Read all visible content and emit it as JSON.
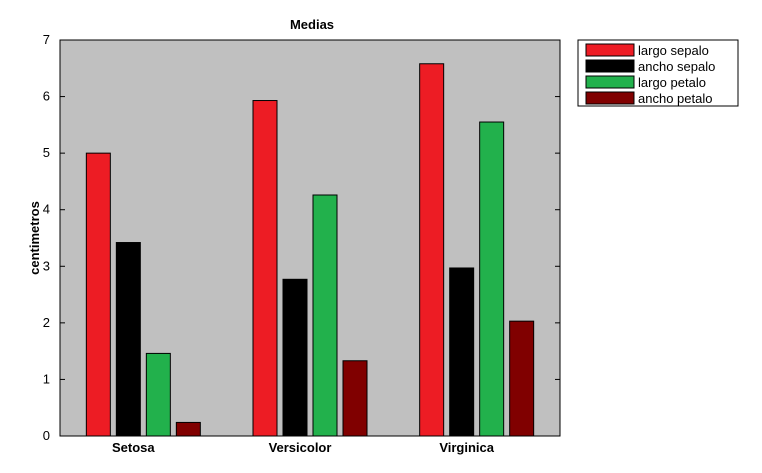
{
  "chart_data": {
    "type": "bar",
    "title": "Medias",
    "xlabel": "",
    "ylabel": "centimetros",
    "categories": [
      "Setosa",
      "Versicolor",
      "Virginica"
    ],
    "ylim": [
      0,
      7
    ],
    "yticks": [
      0,
      1,
      2,
      3,
      4,
      5,
      6,
      7
    ],
    "grid": false,
    "legend_position": "top-right-outside",
    "series": [
      {
        "name": "largo sepalo",
        "color": "#ed1c24",
        "values": [
          5.0,
          5.93,
          6.58
        ]
      },
      {
        "name": "ancho sepalo",
        "color": "#000000",
        "values": [
          3.42,
          2.77,
          2.97
        ]
      },
      {
        "name": "largo petalo",
        "color": "#22b14c",
        "values": [
          1.46,
          4.26,
          5.55
        ]
      },
      {
        "name": "ancho petalo",
        "color": "#800000",
        "values": [
          0.24,
          1.33,
          2.03
        ]
      }
    ],
    "plot_background": "#c0c0c0"
  }
}
